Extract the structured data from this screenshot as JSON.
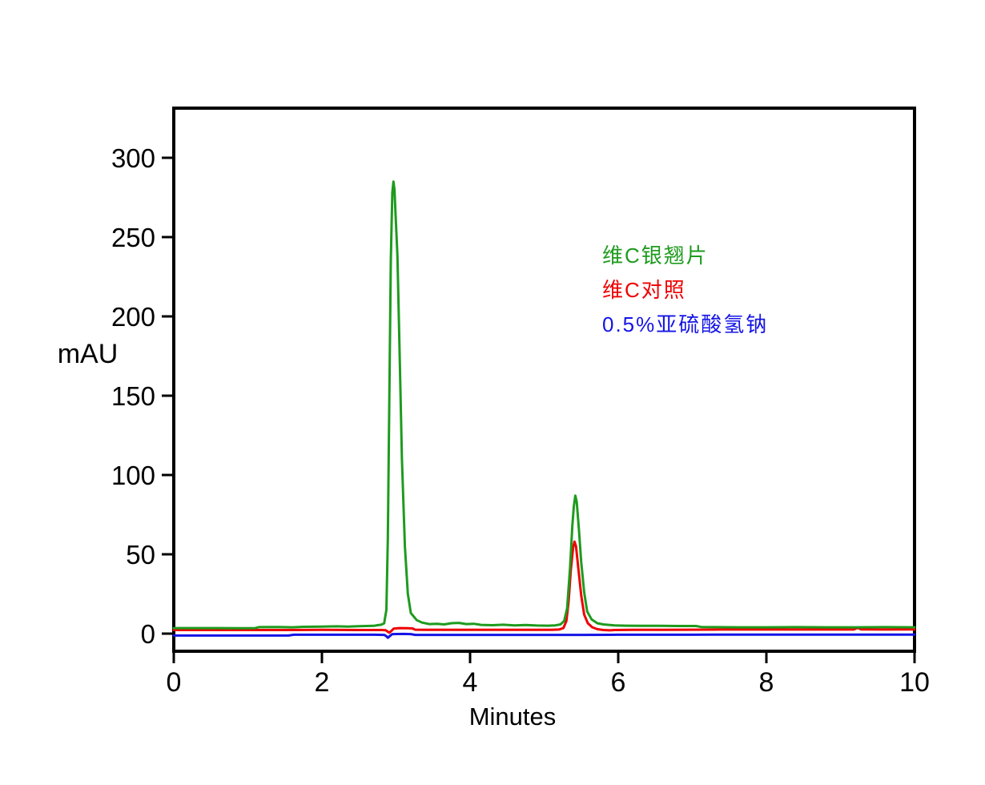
{
  "figure": {
    "background_color": "#ffffff",
    "axis_color": "#000000",
    "plot_border": "rectangular-box",
    "grid": false
  },
  "chart_data": {
    "type": "line",
    "subtype": "chromatogram",
    "title": "",
    "xlabel": "Minutes",
    "ylabel": "mAU",
    "xlim": [
      0,
      10
    ],
    "ylim_display": [
      -11.1,
      331.3
    ],
    "x_ticks": [
      0,
      2,
      4,
      6,
      8,
      10
    ],
    "y_ticks": [
      0,
      50,
      100,
      150,
      200,
      250,
      300
    ],
    "legend_position": "inside-upper-right",
    "series": [
      {
        "name": "维C银翘片",
        "color": "#1E9B1E",
        "peaks": [
          {
            "rt_min": 2.96,
            "height_mAU": 285
          },
          {
            "rt_min": 5.42,
            "height_mAU": 87
          }
        ],
        "points": [
          [
            0,
            3.5
          ],
          [
            0.3,
            3.5
          ],
          [
            0.6,
            3.5
          ],
          [
            0.9,
            3.4
          ],
          [
            1.1,
            3.5
          ],
          [
            1.15,
            4.1
          ],
          [
            1.4,
            4.2
          ],
          [
            1.6,
            4.0
          ],
          [
            1.75,
            4.3
          ],
          [
            2.0,
            4.4
          ],
          [
            2.2,
            4.6
          ],
          [
            2.35,
            4.4
          ],
          [
            2.5,
            4.7
          ],
          [
            2.6,
            4.8
          ],
          [
            2.7,
            4.9
          ],
          [
            2.75,
            5.3
          ],
          [
            2.8,
            5.6
          ],
          [
            2.84,
            6.5
          ],
          [
            2.87,
            15
          ],
          [
            2.89,
            60
          ],
          [
            2.91,
            150
          ],
          [
            2.93,
            235
          ],
          [
            2.95,
            278
          ],
          [
            2.965,
            285
          ],
          [
            2.98,
            280
          ],
          [
            3.0,
            258
          ],
          [
            3.02,
            238
          ],
          [
            3.05,
            175
          ],
          [
            3.08,
            110
          ],
          [
            3.12,
            55
          ],
          [
            3.16,
            25
          ],
          [
            3.2,
            13
          ],
          [
            3.28,
            8.5
          ],
          [
            3.35,
            7
          ],
          [
            3.45,
            6
          ],
          [
            3.55,
            6.2
          ],
          [
            3.65,
            5.8
          ],
          [
            3.75,
            6.6
          ],
          [
            3.85,
            6.8
          ],
          [
            3.95,
            6.0
          ],
          [
            4.05,
            6.2
          ],
          [
            4.15,
            5.5
          ],
          [
            4.3,
            5.3
          ],
          [
            4.45,
            5.6
          ],
          [
            4.6,
            5.2
          ],
          [
            4.75,
            5.4
          ],
          [
            4.9,
            5.1
          ],
          [
            5.05,
            5.0
          ],
          [
            5.15,
            5.2
          ],
          [
            5.22,
            5.8
          ],
          [
            5.27,
            8
          ],
          [
            5.31,
            16
          ],
          [
            5.35,
            42
          ],
          [
            5.38,
            68
          ],
          [
            5.4,
            80
          ],
          [
            5.42,
            87
          ],
          [
            5.44,
            83
          ],
          [
            5.47,
            65
          ],
          [
            5.5,
            45
          ],
          [
            5.54,
            26
          ],
          [
            5.58,
            14
          ],
          [
            5.64,
            9
          ],
          [
            5.72,
            6.5
          ],
          [
            5.8,
            5.8
          ],
          [
            5.95,
            5.2
          ],
          [
            6.1,
            5.0
          ],
          [
            6.3,
            4.9
          ],
          [
            6.55,
            4.9
          ],
          [
            6.8,
            4.8
          ],
          [
            7.05,
            4.8
          ],
          [
            7.12,
            4.2
          ],
          [
            7.3,
            4.1
          ],
          [
            7.6,
            4.0
          ],
          [
            8.0,
            4.0
          ],
          [
            8.4,
            4.1
          ],
          [
            8.8,
            4.0
          ],
          [
            9.2,
            4.0
          ],
          [
            9.6,
            4.1
          ],
          [
            10,
            4.0
          ]
        ]
      },
      {
        "name": "维C对照",
        "color": "#EE0000",
        "peaks": [
          {
            "rt_min": 5.41,
            "height_mAU": 58
          }
        ],
        "points": [
          [
            0,
            2.3
          ],
          [
            0.5,
            2.3
          ],
          [
            1.0,
            2.3
          ],
          [
            1.5,
            2.3
          ],
          [
            2.0,
            2.4
          ],
          [
            2.5,
            2.3
          ],
          [
            2.8,
            2.3
          ],
          [
            2.86,
            2.2
          ],
          [
            2.89,
            1.2
          ],
          [
            2.91,
            0.6
          ],
          [
            2.94,
            1.8
          ],
          [
            2.97,
            3.2
          ],
          [
            3.05,
            3.5
          ],
          [
            3.15,
            3.4
          ],
          [
            3.22,
            3.3
          ],
          [
            3.26,
            2.5
          ],
          [
            3.4,
            2.4
          ],
          [
            3.7,
            2.4
          ],
          [
            4.0,
            2.4
          ],
          [
            4.3,
            2.4
          ],
          [
            4.6,
            2.4
          ],
          [
            4.9,
            2.4
          ],
          [
            5.1,
            2.4
          ],
          [
            5.2,
            2.6
          ],
          [
            5.26,
            3.5
          ],
          [
            5.3,
            8
          ],
          [
            5.33,
            20
          ],
          [
            5.36,
            40
          ],
          [
            5.39,
            54
          ],
          [
            5.41,
            58
          ],
          [
            5.43,
            55
          ],
          [
            5.46,
            42
          ],
          [
            5.5,
            24
          ],
          [
            5.54,
            12
          ],
          [
            5.59,
            6.5
          ],
          [
            5.65,
            4
          ],
          [
            5.72,
            2.8
          ],
          [
            5.8,
            2.3
          ],
          [
            5.88,
            2.1
          ],
          [
            5.95,
            2.3
          ],
          [
            6.2,
            2.4
          ],
          [
            6.6,
            2.4
          ],
          [
            7.0,
            2.5
          ],
          [
            7.4,
            2.6
          ],
          [
            7.8,
            2.6
          ],
          [
            8.2,
            2.6
          ],
          [
            8.6,
            2.6
          ],
          [
            9.0,
            2.6
          ],
          [
            9.18,
            2.6
          ],
          [
            9.23,
            3.6
          ],
          [
            9.28,
            2.7
          ],
          [
            9.6,
            2.6
          ],
          [
            10,
            2.7
          ]
        ]
      },
      {
        "name": "0.5%亚硫酸氢钠",
        "color": "#1414E6",
        "peaks": [],
        "points": [
          [
            0,
            -1.2
          ],
          [
            0.4,
            -1.2
          ],
          [
            0.8,
            -1.2
          ],
          [
            1.2,
            -1.2
          ],
          [
            1.55,
            -1.2
          ],
          [
            1.62,
            -0.7
          ],
          [
            2.0,
            -0.7
          ],
          [
            2.4,
            -0.7
          ],
          [
            2.7,
            -0.7
          ],
          [
            2.84,
            -0.8
          ],
          [
            2.87,
            -1.6
          ],
          [
            2.89,
            -2.6
          ],
          [
            2.92,
            -1.4
          ],
          [
            2.95,
            -0.3
          ],
          [
            3.1,
            -0.2
          ],
          [
            3.2,
            -0.3
          ],
          [
            3.26,
            -0.8
          ],
          [
            3.5,
            -0.8
          ],
          [
            4.0,
            -0.8
          ],
          [
            4.5,
            -0.8
          ],
          [
            5.0,
            -0.8
          ],
          [
            5.5,
            -0.8
          ],
          [
            6.0,
            -0.7
          ],
          [
            6.5,
            -0.7
          ],
          [
            7.0,
            -0.7
          ],
          [
            7.5,
            -0.6
          ],
          [
            8.0,
            -0.6
          ],
          [
            8.5,
            -0.6
          ],
          [
            9.0,
            -0.6
          ],
          [
            9.5,
            -0.6
          ],
          [
            10,
            -0.6
          ]
        ]
      }
    ]
  }
}
